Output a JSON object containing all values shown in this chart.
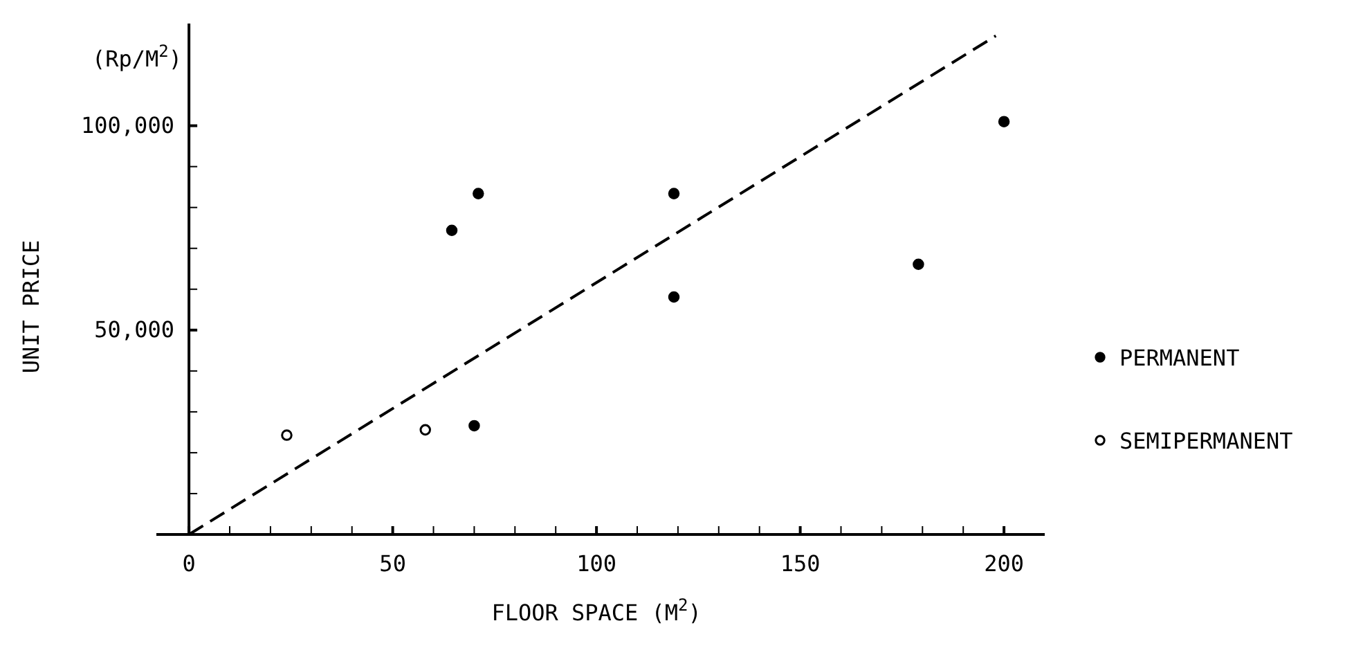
{
  "chart_data": {
    "type": "scatter",
    "xlabel": "FLOOR SPACE  (M$^{2}$)",
    "ylabel": "UNIT PRICE",
    "annotations": [
      "(Rp/M$^{2}$)"
    ],
    "xlim": [
      -8,
      210
    ],
    "ylim": [
      0,
      125000
    ],
    "xticks": [
      {
        "value": 0,
        "label": "0"
      },
      {
        "value": 10,
        "label": null
      },
      {
        "value": 20,
        "label": null
      },
      {
        "value": 30,
        "label": null
      },
      {
        "value": 40,
        "label": null
      },
      50,
      {
        "value": 60,
        "label": null
      },
      {
        "value": 70,
        "label": null
      },
      {
        "value": 80,
        "label": null
      },
      {
        "value": 90,
        "label": null
      },
      100,
      {
        "value": 110,
        "label": null
      },
      {
        "value": 120,
        "label": null
      },
      {
        "value": 130,
        "label": null
      },
      {
        "value": 140,
        "label": null
      },
      150,
      {
        "value": 160,
        "label": null
      },
      {
        "value": 170,
        "label": null
      },
      {
        "value": 180,
        "label": null
      },
      {
        "value": 190,
        "label": null
      },
      200
    ],
    "yticks": [
      {
        "value": 10000,
        "label": null
      },
      {
        "value": 20000,
        "label": null
      },
      {
        "value": 30000,
        "label": null
      },
      {
        "value": 40000,
        "label": null
      },
      {
        "value": 50000,
        "label": "50,000"
      },
      {
        "value": 60000,
        "label": null
      },
      {
        "value": 70000,
        "label": null
      },
      {
        "value": 80000,
        "label": null
      },
      {
        "value": 90000,
        "label": null
      },
      {
        "value": 100000,
        "label": "100,000"
      }
    ],
    "grid": false,
    "legend": "right",
    "series": [
      {
        "name": "PERMANENT",
        "marker": "circle",
        "color": "#000000",
        "x": [
          64.5,
          71,
          70,
          119,
          119,
          179,
          200
        ],
        "values": [
          74400,
          83400,
          26600,
          83400,
          58100,
          66100,
          101000
        ]
      },
      {
        "name": "SEMIPERMANENT",
        "marker": "circle",
        "color": "#ffffff",
        "x": [
          24,
          58
        ],
        "values": [
          24300,
          25600
        ]
      },
      {
        "type": "line",
        "line_style": "dashed",
        "marker": "none",
        "color": "#000000",
        "x": [
          0,
          198
        ],
        "values": [
          0,
          122000
        ]
      }
    ]
  }
}
